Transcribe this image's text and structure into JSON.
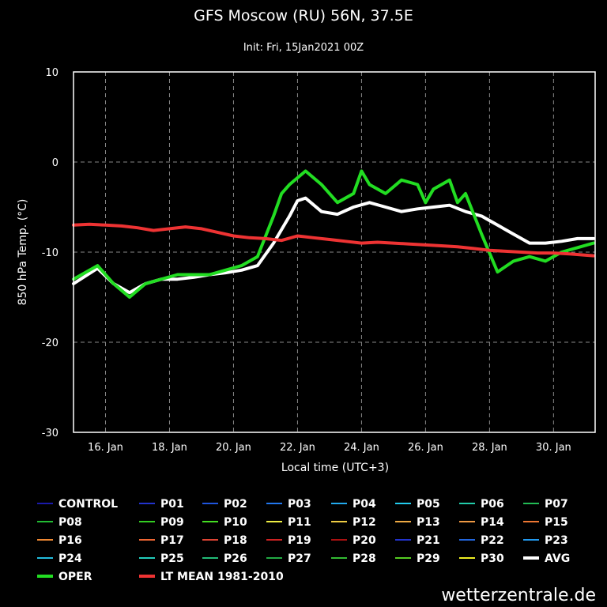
{
  "colors": {
    "background": "#000000",
    "axis": "#ffffff",
    "grid": "#888888",
    "avg": "#ffffff",
    "oper": "#22dd22",
    "lt_mean": "#ee3333"
  },
  "footer": "wetterzentrale.de",
  "chart_data": {
    "type": "line",
    "title": "GFS Moscow (RU) 56N, 37.5E",
    "subtitle": "Init: Fri, 15Jan2021 00Z",
    "xlabel": "Local time (UTC+3)",
    "ylabel": "850 hPa Temp. (°C)",
    "xlim": [
      0,
      16.3
    ],
    "ylim": [
      -30,
      10
    ],
    "x_unit": "days since 15 Jan 2021 00:00 local",
    "yticks": [
      10,
      0,
      -10,
      -20,
      -30
    ],
    "xticks": [
      {
        "x": 1,
        "label": "16. Jan"
      },
      {
        "x": 3,
        "label": "18. Jan"
      },
      {
        "x": 5,
        "label": "20. Jan"
      },
      {
        "x": 7,
        "label": "22. Jan"
      },
      {
        "x": 9,
        "label": "24. Jan"
      },
      {
        "x": 11,
        "label": "26. Jan"
      },
      {
        "x": 13,
        "label": "28. Jan"
      },
      {
        "x": 15,
        "label": "30. Jan"
      }
    ],
    "grid": true,
    "legend_position": "bottom",
    "series": [
      {
        "name": "CONTROL",
        "color": "#1a1aaa",
        "width": 1
      },
      {
        "name": "P01",
        "color": "#2233cc",
        "width": 1
      },
      {
        "name": "P02",
        "color": "#1f55dd",
        "width": 1
      },
      {
        "name": "P03",
        "color": "#2277ee",
        "width": 1
      },
      {
        "name": "P04",
        "color": "#22aaee",
        "width": 1
      },
      {
        "name": "P05",
        "color": "#22ccee",
        "width": 1
      },
      {
        "name": "P06",
        "color": "#22ccaa",
        "width": 1
      },
      {
        "name": "P07",
        "color": "#22bb55",
        "width": 1
      },
      {
        "name": "P08",
        "color": "#22bb33",
        "width": 1
      },
      {
        "name": "P09",
        "color": "#33cc22",
        "width": 1
      },
      {
        "name": "P10",
        "color": "#44dd22",
        "width": 1
      },
      {
        "name": "P11",
        "color": "#eeee44",
        "width": 1
      },
      {
        "name": "P12",
        "color": "#eecc44",
        "width": 1
      },
      {
        "name": "P13",
        "color": "#eeaa44",
        "width": 1
      },
      {
        "name": "P14",
        "color": "#ee9944",
        "width": 1
      },
      {
        "name": "P15",
        "color": "#ee7733",
        "width": 1
      },
      {
        "name": "P16",
        "color": "#ee8833",
        "width": 1
      },
      {
        "name": "P17",
        "color": "#ee6633",
        "width": 1
      },
      {
        "name": "P18",
        "color": "#dd4433",
        "width": 1
      },
      {
        "name": "P19",
        "color": "#cc2222",
        "width": 1
      },
      {
        "name": "P20",
        "color": "#aa1111",
        "width": 1
      },
      {
        "name": "P21",
        "color": "#2233cc",
        "width": 1
      },
      {
        "name": "P22",
        "color": "#2266dd",
        "width": 1
      },
      {
        "name": "P23",
        "color": "#2299ee",
        "width": 1
      },
      {
        "name": "P24",
        "color": "#22bbdd",
        "width": 1
      },
      {
        "name": "P25",
        "color": "#22ccbb",
        "width": 1
      },
      {
        "name": "P26",
        "color": "#22bb77",
        "width": 1
      },
      {
        "name": "P27",
        "color": "#22aa44",
        "width": 1
      },
      {
        "name": "P28",
        "color": "#33bb33",
        "width": 1
      },
      {
        "name": "P29",
        "color": "#55cc22",
        "width": 1
      },
      {
        "name": "P30",
        "color": "#eeee22",
        "width": 1
      },
      {
        "name": "AVG",
        "color": "#ffffff",
        "width": 4,
        "x": [
          0,
          0.75,
          1.25,
          1.75,
          2.25,
          2.75,
          3.25,
          3.75,
          4.25,
          4.75,
          5.25,
          5.75,
          6.25,
          6.75,
          7.0,
          7.25,
          7.75,
          8.25,
          8.75,
          9.25,
          9.75,
          10.25,
          10.75,
          11.25,
          11.75,
          12.25,
          12.75,
          13.25,
          13.75,
          14.25,
          14.75,
          15.25,
          15.75,
          16.25
        ],
        "y": [
          -13.5,
          -11.8,
          -13.5,
          -14.5,
          -13.5,
          -13.0,
          -13.0,
          -12.8,
          -12.5,
          -12.3,
          -12.0,
          -11.5,
          -9.0,
          -6.0,
          -4.3,
          -4.0,
          -5.5,
          -5.8,
          -5.0,
          -4.5,
          -5.0,
          -5.5,
          -5.2,
          -5.0,
          -4.8,
          -5.5,
          -6.0,
          -7.0,
          -8.0,
          -9.0,
          -9.0,
          -8.8,
          -8.5,
          -8.5
        ]
      },
      {
        "name": "OPER",
        "color": "#22dd22",
        "width": 4,
        "x": [
          0,
          0.75,
          1.25,
          1.75,
          2.25,
          2.75,
          3.25,
          3.75,
          4.25,
          4.75,
          5.25,
          5.75,
          6.25,
          6.5,
          6.75,
          7.25,
          7.75,
          8.25,
          8.75,
          9.0,
          9.25,
          9.75,
          10.25,
          10.75,
          11.0,
          11.25,
          11.75,
          12.0,
          12.25,
          12.75,
          13.25,
          13.75,
          14.25,
          14.75,
          15.25,
          15.75,
          16.25
        ],
        "y": [
          -13.0,
          -11.5,
          -13.5,
          -15.0,
          -13.5,
          -13.0,
          -12.5,
          -12.5,
          -12.5,
          -12.0,
          -11.5,
          -10.5,
          -6.0,
          -3.5,
          -2.5,
          -1.0,
          -2.5,
          -4.5,
          -3.5,
          -1.0,
          -2.5,
          -3.5,
          -2.0,
          -2.5,
          -4.5,
          -3.0,
          -2.0,
          -4.5,
          -3.5,
          -8.0,
          -12.2,
          -11.0,
          -10.5,
          -11.0,
          -10.0,
          -9.5,
          -9.0
        ]
      },
      {
        "name": "LT MEAN 1981-2010",
        "color": "#ee3333",
        "width": 4,
        "x": [
          0,
          0.5,
          1.0,
          1.5,
          2.0,
          2.5,
          3.0,
          3.5,
          4.0,
          4.5,
          5.0,
          5.5,
          6.0,
          6.5,
          7.0,
          7.5,
          8.0,
          8.5,
          9.0,
          9.5,
          10.0,
          10.5,
          11.0,
          11.5,
          12.0,
          12.5,
          13.0,
          13.5,
          14.0,
          14.5,
          15.0,
          15.5,
          16.25
        ],
        "y": [
          -7.0,
          -6.9,
          -7.0,
          -7.1,
          -7.3,
          -7.6,
          -7.4,
          -7.2,
          -7.4,
          -7.8,
          -8.2,
          -8.4,
          -8.5,
          -8.7,
          -8.2,
          -8.4,
          -8.6,
          -8.8,
          -9.0,
          -8.9,
          -9.0,
          -9.1,
          -9.2,
          -9.3,
          -9.4,
          -9.6,
          -9.8,
          -9.9,
          -10.0,
          -10.1,
          -10.1,
          -10.2,
          -10.4
        ]
      }
    ]
  }
}
